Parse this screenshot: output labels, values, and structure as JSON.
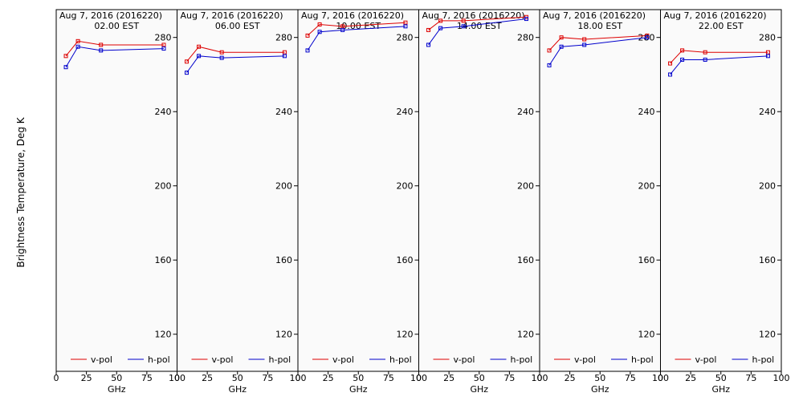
{
  "figure": {
    "ylabel": "Brightness Temperature, Deg K",
    "xlabel": "GHz"
  },
  "colors": {
    "v_pol": "#dd0000",
    "h_pol": "#0000cc"
  },
  "chart_data": [
    {
      "type": "line",
      "title": "Aug  7, 2016 (2016220)",
      "subtitle": "02.00 EST",
      "xlabel": "GHz",
      "ylabel": "Brightness Temperature, Deg K",
      "xlim": [
        0,
        100
      ],
      "ylim": [
        100,
        295
      ],
      "xticks": [
        0,
        25,
        50,
        75,
        100
      ],
      "yticks": [
        120,
        160,
        200,
        240,
        280
      ],
      "legend": "bottom",
      "series": [
        {
          "name": "v-pol",
          "x": [
            8,
            18,
            37,
            89
          ],
          "y": [
            270,
            278,
            276,
            276
          ]
        },
        {
          "name": "h-pol",
          "x": [
            8,
            18,
            37,
            89
          ],
          "y": [
            264,
            275,
            273,
            274
          ]
        }
      ]
    },
    {
      "type": "line",
      "title": "Aug  7, 2016 (2016220)",
      "subtitle": "06.00 EST",
      "xlabel": "GHz",
      "xlim": [
        0,
        100
      ],
      "ylim": [
        100,
        295
      ],
      "xticks": [
        0,
        25,
        50,
        75,
        100
      ],
      "yticks": [
        120,
        160,
        200,
        240,
        280
      ],
      "legend": "bottom",
      "series": [
        {
          "name": "v-pol",
          "x": [
            8,
            18,
            37,
            89
          ],
          "y": [
            267,
            275,
            272,
            272
          ]
        },
        {
          "name": "h-pol",
          "x": [
            8,
            18,
            37,
            89
          ],
          "y": [
            261,
            270,
            269,
            270
          ]
        }
      ]
    },
    {
      "type": "line",
      "title": "Aug  7, 2016 (2016220)",
      "subtitle": "10.00 EST",
      "xlabel": "GHz",
      "xlim": [
        0,
        100
      ],
      "ylim": [
        100,
        295
      ],
      "xticks": [
        0,
        25,
        50,
        75,
        100
      ],
      "yticks": [
        120,
        160,
        200,
        240,
        280
      ],
      "legend": "bottom",
      "series": [
        {
          "name": "v-pol",
          "x": [
            8,
            18,
            37,
            89
          ],
          "y": [
            281,
            287,
            286,
            288
          ]
        },
        {
          "name": "h-pol",
          "x": [
            8,
            18,
            37,
            89
          ],
          "y": [
            273,
            283,
            284,
            286
          ]
        }
      ]
    },
    {
      "type": "line",
      "title": "Aug  7, 2016 (2016220)",
      "subtitle": "14.00 EST",
      "xlabel": "GHz",
      "xlim": [
        0,
        100
      ],
      "ylim": [
        100,
        295
      ],
      "xticks": [
        0,
        25,
        50,
        75,
        100
      ],
      "yticks": [
        120,
        160,
        200,
        240,
        280
      ],
      "legend": "bottom",
      "series": [
        {
          "name": "v-pol",
          "x": [
            8,
            18,
            37,
            89
          ],
          "y": [
            284,
            289,
            289,
            291
          ]
        },
        {
          "name": "h-pol",
          "x": [
            8,
            18,
            37,
            89
          ],
          "y": [
            276,
            285,
            286,
            290
          ]
        }
      ]
    },
    {
      "type": "line",
      "title": "Aug  7, 2016 (2016220)",
      "subtitle": "18.00 EST",
      "xlabel": "GHz",
      "xlim": [
        0,
        100
      ],
      "ylim": [
        100,
        295
      ],
      "xticks": [
        0,
        25,
        50,
        75,
        100
      ],
      "yticks": [
        120,
        160,
        200,
        240,
        280
      ],
      "legend": "bottom",
      "series": [
        {
          "name": "v-pol",
          "x": [
            8,
            18,
            37,
            89
          ],
          "y": [
            273,
            280,
            279,
            281
          ]
        },
        {
          "name": "h-pol",
          "x": [
            8,
            18,
            37,
            89
          ],
          "y": [
            265,
            275,
            276,
            280
          ]
        }
      ]
    },
    {
      "type": "line",
      "title": "Aug  7, 2016 (2016220)",
      "subtitle": "22.00 EST",
      "xlabel": "GHz",
      "xlim": [
        0,
        100
      ],
      "ylim": [
        100,
        295
      ],
      "xticks": [
        0,
        25,
        50,
        75,
        100
      ],
      "yticks": [
        120,
        160,
        200,
        240,
        280
      ],
      "legend": "bottom",
      "series": [
        {
          "name": "v-pol",
          "x": [
            8,
            18,
            37,
            89
          ],
          "y": [
            266,
            273,
            272,
            272
          ]
        },
        {
          "name": "h-pol",
          "x": [
            8,
            18,
            37,
            89
          ],
          "y": [
            260,
            268,
            268,
            270
          ]
        }
      ]
    }
  ]
}
